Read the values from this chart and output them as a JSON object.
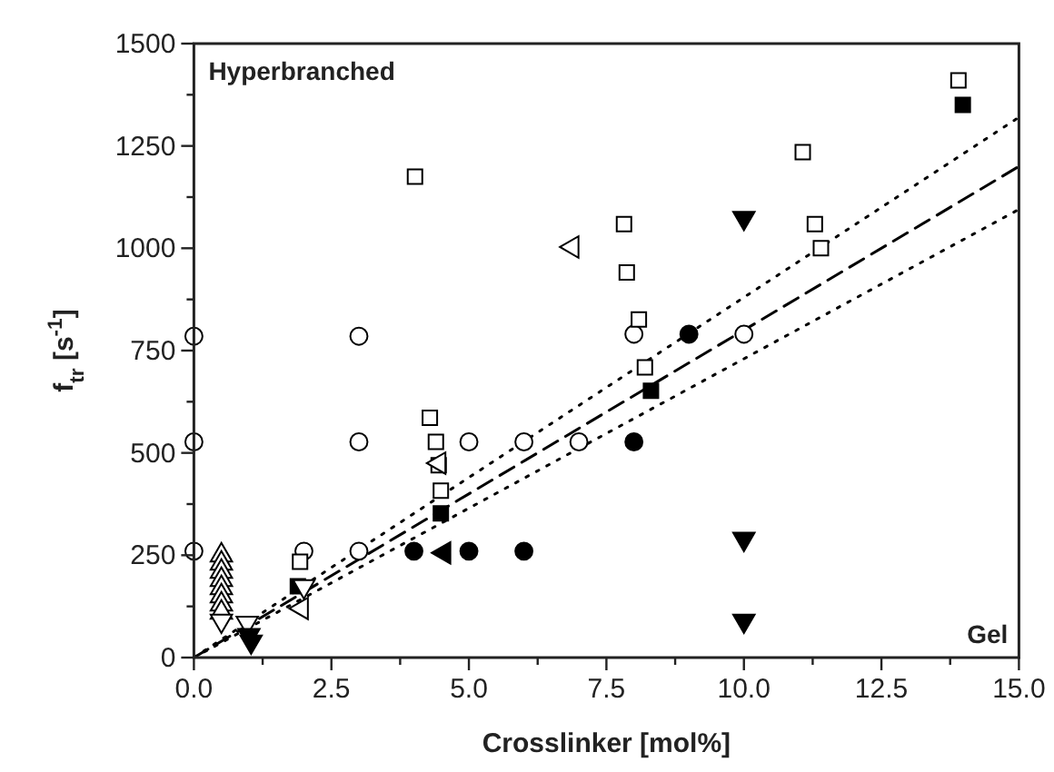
{
  "chart_data": {
    "type": "scatter",
    "xlabel": "Crosslinker [mol%]",
    "ylabel": "f$_{tr}$ [s$^{-1}$]",
    "annotations": [
      "Hyperbranched",
      "Gel"
    ],
    "xlim": [
      0,
      15
    ],
    "ylim": [
      0,
      1500
    ],
    "xticks": [
      {
        "value": 0,
        "label": "0.0"
      },
      {
        "value": 1.25,
        "label": null
      },
      {
        "value": 2.5,
        "label": "2.5"
      },
      {
        "value": 3.75,
        "label": null
      },
      {
        "value": 5,
        "label": "5.0"
      },
      {
        "value": 6.25,
        "label": null
      },
      {
        "value": 7.5,
        "label": "7.5"
      },
      {
        "value": 8.75,
        "label": null
      },
      {
        "value": 10,
        "label": "10.0"
      },
      {
        "value": 11.25,
        "label": null
      },
      {
        "value": 12.5,
        "label": "12.5"
      },
      {
        "value": 13.75,
        "label": null
      },
      {
        "value": 15,
        "label": "15.0"
      }
    ],
    "yticks": [
      0,
      {
        "value": 125,
        "label": null
      },
      250,
      {
        "value": 375,
        "label": null
      },
      500,
      {
        "value": 625,
        "label": null
      },
      750,
      {
        "value": 875,
        "label": null
      },
      1000,
      {
        "value": 1125,
        "label": null
      },
      1250,
      {
        "value": 1375,
        "label": null
      },
      1500
    ],
    "grid": false,
    "series": [
      {
        "marker": "circle",
        "color": "#ffffff",
        "x": [
          0,
          0,
          0,
          2,
          3,
          3,
          3,
          5,
          6,
          7,
          8,
          10
        ],
        "values": [
          785,
          527,
          260,
          260,
          785,
          527,
          260,
          527,
          527,
          527,
          790,
          790
        ]
      },
      {
        "marker": "circle",
        "color": "#000000",
        "x": [
          4,
          5,
          6,
          8,
          9
        ],
        "values": [
          260,
          260,
          260,
          527,
          790
        ]
      },
      {
        "marker": "square",
        "color": "#ffffff",
        "x": [
          1.93,
          4.02,
          4.29,
          4.4,
          4.45,
          4.49,
          7.82,
          7.87,
          8.09,
          8.2,
          11.07,
          11.29,
          11.4,
          13.9
        ],
        "values": [
          234,
          1175,
          586,
          527,
          470,
          408,
          1059,
          941,
          826,
          709,
          1235,
          1059,
          1000,
          1410
        ]
      },
      {
        "marker": "square",
        "color": "#000000",
        "x": [
          1.89,
          4.49,
          8.31,
          13.98
        ],
        "values": [
          174,
          352,
          652,
          1350
        ]
      },
      {
        "marker": "triangle",
        "color": "#ffffff",
        "x": [
          0.5,
          0.5,
          0.5,
          0.5,
          0.5,
          0.5,
          0.5,
          0.5
        ],
        "values": [
          250,
          230,
          210,
          190,
          170,
          150,
          130,
          110
        ]
      },
      {
        "marker": "triangle-down",
        "color": "#ffffff",
        "x": [
          0.5,
          0.97,
          2.0
        ],
        "values": [
          90,
          85,
          174
        ]
      },
      {
        "marker": "triangle-down",
        "color": "#000000",
        "x": [
          1.0,
          1.04,
          10,
          10,
          10
        ],
        "values": [
          55,
          39,
          1074,
          290,
          90
        ]
      },
      {
        "marker": "triangle-left",
        "color": "#ffffff",
        "x": [
          1.96,
          4.46,
          6.88
        ],
        "values": [
          120,
          475,
          1003
        ]
      },
      {
        "marker": "triangle-left",
        "color": "#000000",
        "x": [
          4.55
        ],
        "values": [
          256
        ]
      },
      {
        "type": "line",
        "line_style": "dashed",
        "color": "#000000",
        "x": [
          0,
          15
        ],
        "values": [
          0,
          1200
        ]
      },
      {
        "type": "line",
        "line_style": "dotted",
        "color": "#000000",
        "x": [
          0,
          15
        ],
        "values": [
          0,
          1320
        ]
      },
      {
        "type": "line",
        "line_style": "dotted",
        "color": "#000000",
        "x": [
          0,
          15
        ],
        "values": [
          0,
          1095
        ]
      }
    ]
  }
}
